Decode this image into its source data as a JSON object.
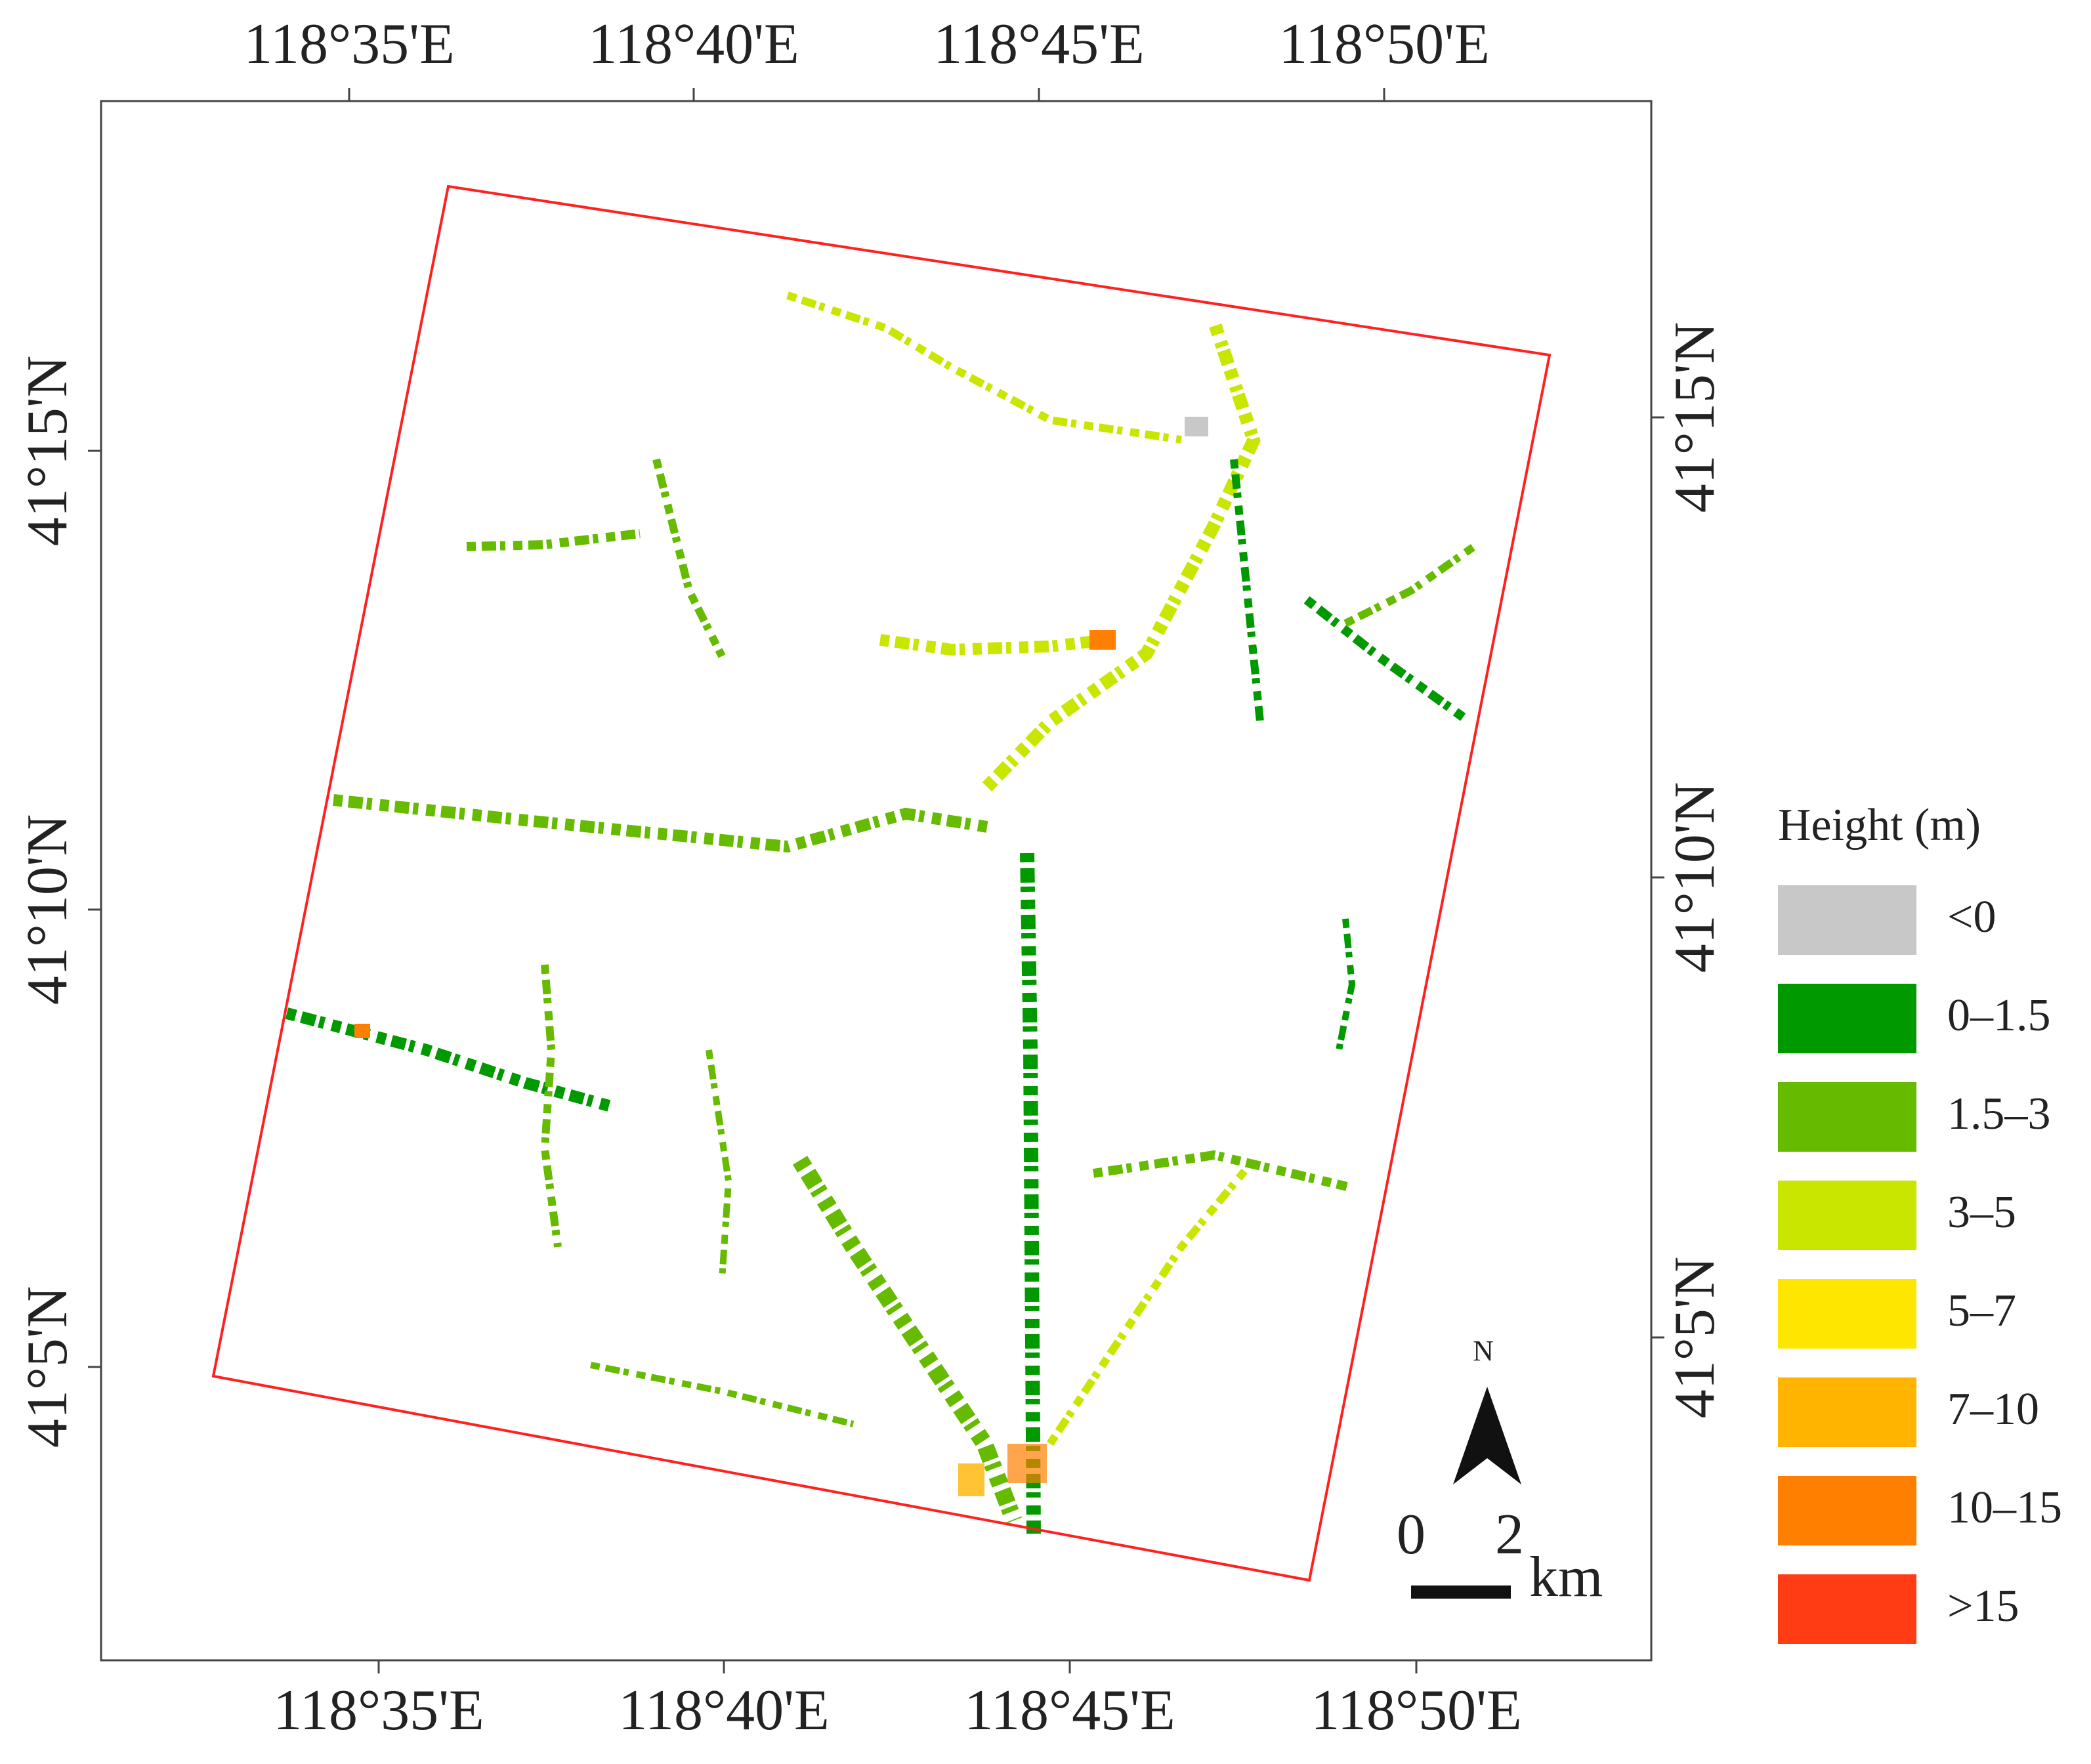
{
  "map": {
    "top_labels": [
      "118°35'E",
      "118°40'E",
      "118°45'E",
      "118°50'E"
    ],
    "bottom_labels": [
      "118°35'E",
      "118°40'E",
      "118°45'E",
      "118°50'E"
    ],
    "left_labels": [
      "41°15'N",
      "41°10'N",
      "41°5'N"
    ],
    "right_labels": [
      "41°15'N",
      "41°10'N",
      "41°5'N"
    ],
    "legend": {
      "title": "Height (m)",
      "items": [
        {
          "label": "<0",
          "color": "#c8c8c8"
        },
        {
          "label": "0–1.5",
          "color": "#009900"
        },
        {
          "label": "1.5–3",
          "color": "#66bb00"
        },
        {
          "label": "3–5",
          "color": "#c8e600"
        },
        {
          "label": "5–7",
          "color": "#ffe600"
        },
        {
          "label": "7–10",
          "color": "#ffb400"
        },
        {
          "label": "10–15",
          "color": "#ff8000"
        },
        {
          "label": ">15",
          "color": "#ff3c14"
        }
      ]
    },
    "north": "N",
    "scale": {
      "labels": [
        "0",
        "2"
      ],
      "unit": "km"
    }
  }
}
